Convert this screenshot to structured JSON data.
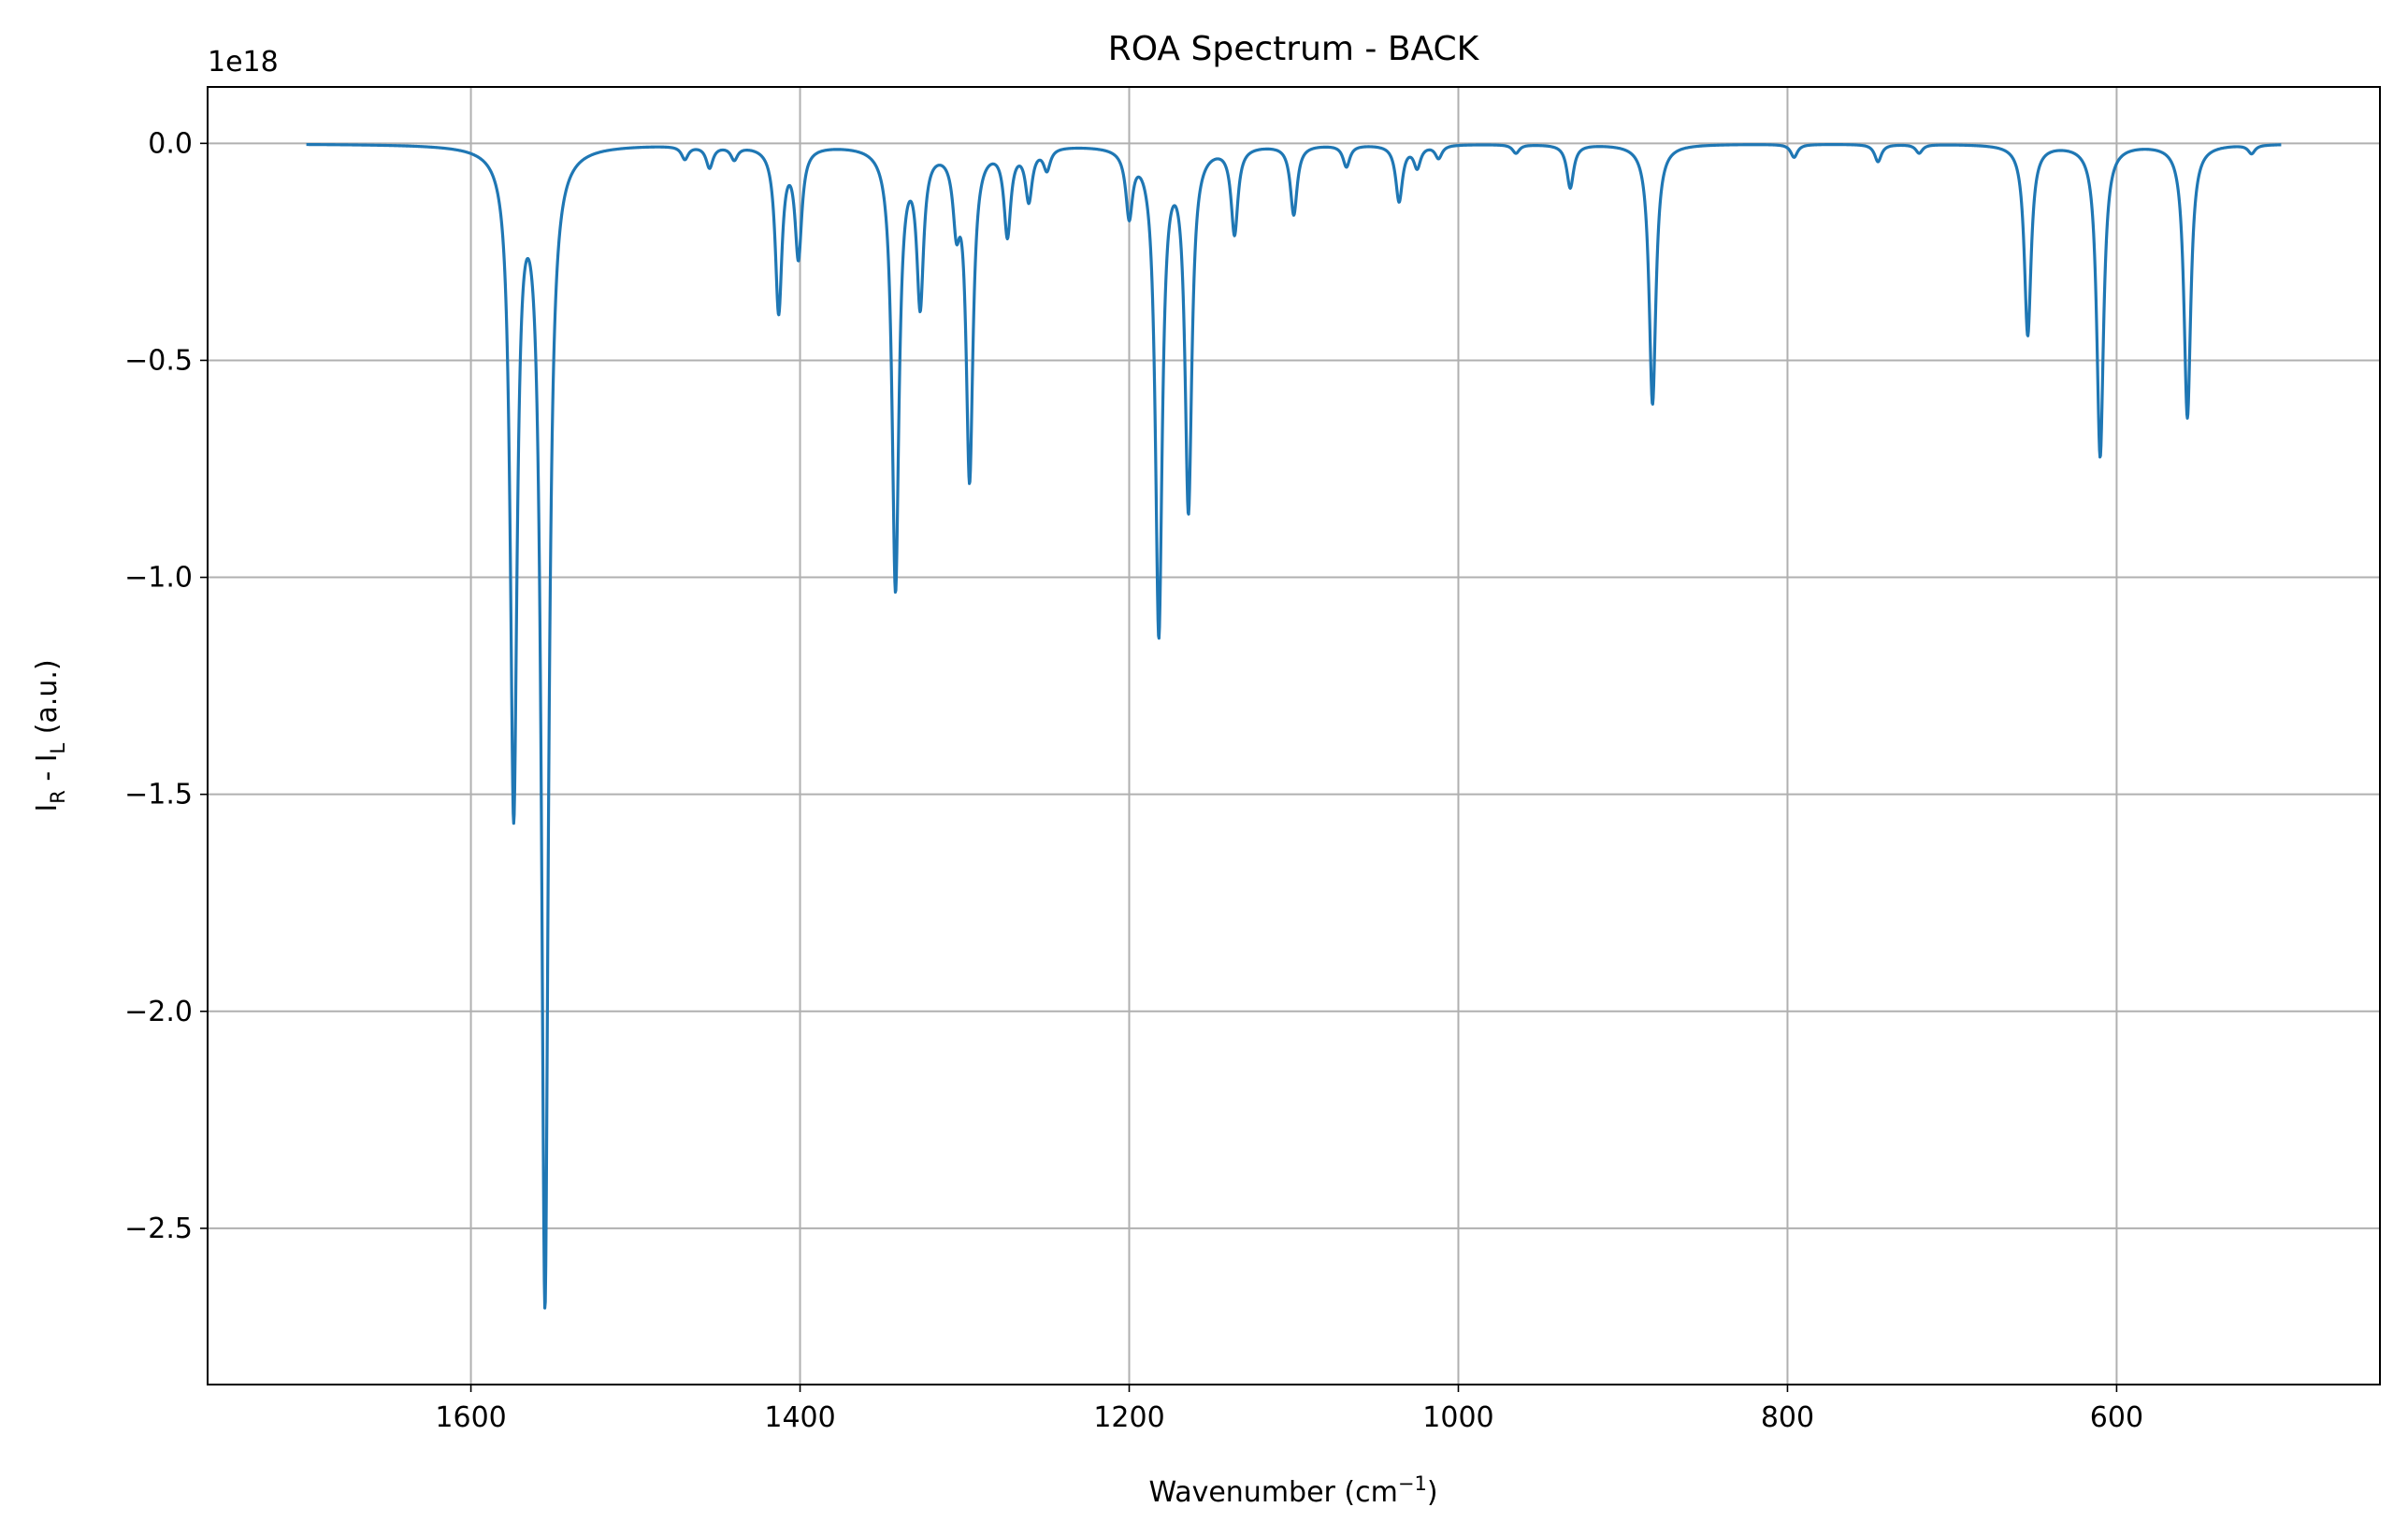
{
  "chart_data": {
    "type": "line",
    "title": "ROA Spectrum - BACK",
    "xlabel_main": "Wavenumber (cm",
    "xlabel_sup": "−1",
    "xlabel_close": ")",
    "ylabel_I1": "I",
    "ylabel_R": "R",
    "ylabel_mid": " - I",
    "ylabel_L": "L",
    "ylabel_units": " (a.u.)",
    "offset_text": "1e18",
    "xlim": [
      1760,
      440
    ],
    "ylim": [
      -2.86,
      0.13
    ],
    "x_inverted": true,
    "grid": true,
    "x_ticks": [
      1600,
      1400,
      1200,
      1000,
      800,
      600
    ],
    "x_tick_labels": [
      "1600",
      "1400",
      "1200",
      "1000",
      "800",
      "600"
    ],
    "y_ticks": [
      0.0,
      -0.5,
      -1.0,
      -1.5,
      -2.0,
      -2.5
    ],
    "y_tick_labels": [
      "0.0",
      "−0.5",
      "−1.0",
      "−1.5",
      "−2.0",
      "−2.5"
    ],
    "series": [
      {
        "color": "#1f77b4",
        "x_range": [
          1700,
          500
        ],
        "baseline": -0.001,
        "peaks": [
          {
            "center": 1574,
            "intensity": -1.52,
            "width": 5
          },
          {
            "center": 1555,
            "intensity": -2.66,
            "width": 5
          },
          {
            "center": 1470,
            "intensity": -0.03,
            "width": 5
          },
          {
            "center": 1455,
            "intensity": -0.05,
            "width": 5
          },
          {
            "center": 1440,
            "intensity": -0.03,
            "width": 5
          },
          {
            "center": 1413,
            "intensity": -0.38,
            "width": 5
          },
          {
            "center": 1401,
            "intensity": -0.25,
            "width": 5
          },
          {
            "center": 1342,
            "intensity": -1.02,
            "width": 5
          },
          {
            "center": 1327,
            "intensity": -0.35,
            "width": 5
          },
          {
            "center": 1305,
            "intensity": -0.15,
            "width": 5
          },
          {
            "center": 1297,
            "intensity": -0.76,
            "width": 5
          },
          {
            "center": 1274,
            "intensity": -0.2,
            "width": 5
          },
          {
            "center": 1261,
            "intensity": -0.12,
            "width": 5
          },
          {
            "center": 1250,
            "intensity": -0.05,
            "width": 5
          },
          {
            "center": 1200,
            "intensity": -0.15,
            "width": 5
          },
          {
            "center": 1182,
            "intensity": -1.12,
            "width": 5
          },
          {
            "center": 1164,
            "intensity": -0.83,
            "width": 5
          },
          {
            "center": 1136,
            "intensity": -0.2,
            "width": 5
          },
          {
            "center": 1100,
            "intensity": -0.16,
            "width": 5
          },
          {
            "center": 1068,
            "intensity": -0.05,
            "width": 5
          },
          {
            "center": 1036,
            "intensity": -0.13,
            "width": 5
          },
          {
            "center": 1025,
            "intensity": -0.05,
            "width": 5
          },
          {
            "center": 1012,
            "intensity": -0.03,
            "width": 5
          },
          {
            "center": 965,
            "intensity": -0.02,
            "width": 5
          },
          {
            "center": 932,
            "intensity": -0.1,
            "width": 5
          },
          {
            "center": 882,
            "intensity": -0.6,
            "width": 5
          },
          {
            "center": 796,
            "intensity": -0.03,
            "width": 5
          },
          {
            "center": 745,
            "intensity": -0.04,
            "width": 5
          },
          {
            "center": 720,
            "intensity": -0.02,
            "width": 5
          },
          {
            "center": 654,
            "intensity": -0.44,
            "width": 5
          },
          {
            "center": 610,
            "intensity": -0.72,
            "width": 5
          },
          {
            "center": 557,
            "intensity": -0.63,
            "width": 5
          },
          {
            "center": 518,
            "intensity": -0.02,
            "width": 5
          }
        ]
      }
    ]
  }
}
